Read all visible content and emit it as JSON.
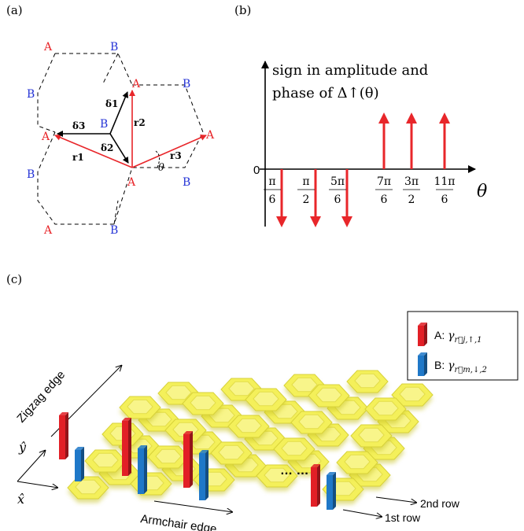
{
  "panel_a": {
    "label": "(a)",
    "sublattice_a": "A",
    "sublattice_b": "B",
    "vectors": {
      "delta1": "δ1",
      "delta2": "δ2",
      "delta3": "δ3",
      "r1": "r1",
      "r2": "r2",
      "r3": "r3"
    },
    "angle": "θ",
    "colors": {
      "site_a": "#e8262a",
      "site_b": "#2433d6",
      "delta": "#000000",
      "r": "#e8262a"
    }
  },
  "panel_b": {
    "label": "(b)",
    "ylabel_line1": "sign in amplitude and",
    "ylabel_line2": "phase of Δ↑(θ)",
    "zero": "0",
    "xlabel": "θ",
    "ticks": [
      {
        "num": "π",
        "den": "6",
        "sign": -1
      },
      {
        "num": "π",
        "den": "2",
        "sign": -1
      },
      {
        "num": "5π",
        "den": "6",
        "sign": -1
      },
      {
        "num": "7π",
        "den": "6",
        "sign": 1
      },
      {
        "num": "3π",
        "den": "2",
        "sign": 1
      },
      {
        "num": "11π",
        "den": "6",
        "sign": 1
      }
    ],
    "arrow_color": "#e8262a"
  },
  "panel_c": {
    "label": "(c)",
    "zigzag_edge": "Zigzag edge",
    "armchair_edge": "Armchair edge",
    "ellipsis": "… …",
    "y_hat": "ŷ",
    "x_hat": "x̂",
    "row1": "1st row",
    "row2": "2nd row",
    "legend": {
      "a_prefix": "A: ",
      "a_sym": "γ",
      "a_sub": "r⃗j,↑,1",
      "b_prefix": "B: ",
      "b_sym": "γ",
      "b_sub": "r⃗m,↓,2",
      "color_a": "#e21f26",
      "color_b": "#1f78c8"
    },
    "hex_color": "#f4f05a"
  }
}
